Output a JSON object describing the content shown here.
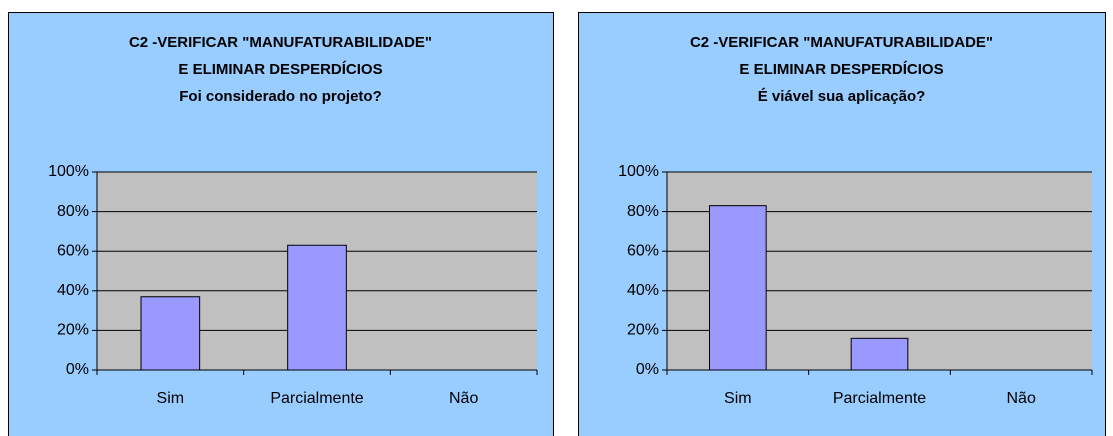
{
  "chart_data": [
    {
      "type": "bar",
      "title": [
        "C2 -VERIFICAR \"MANUFATURABILIDADE\"",
        "E ELIMINAR DESPERDÍCIOS",
        "Foi considerado no projeto?"
      ],
      "categories": [
        "Sim",
        "Parcialmente",
        "Não"
      ],
      "values": [
        37,
        63,
        0
      ],
      "color": "#9999ff",
      "ylim": [
        0,
        100
      ],
      "yticks": [
        {
          "value": 0,
          "label": "0%"
        },
        {
          "value": 20,
          "label": "20%"
        },
        {
          "value": 40,
          "label": "40%"
        },
        {
          "value": 60,
          "label": "60%"
        },
        {
          "value": 80,
          "label": "80%"
        },
        {
          "value": 100,
          "label": "100%"
        }
      ],
      "grid": true
    },
    {
      "type": "bar",
      "title": [
        "C2 -VERIFICAR \"MANUFATURABILIDADE\"",
        "E ELIMINAR DESPERDÍCIOS",
        "É viável sua aplicação?"
      ],
      "categories": [
        "Sim",
        "Parcialmente",
        "Não"
      ],
      "values": [
        83,
        16,
        0
      ],
      "color": "#9999ff",
      "ylim": [
        0,
        100
      ],
      "yticks": [
        {
          "value": 0,
          "label": "0%"
        },
        {
          "value": 20,
          "label": "20%"
        },
        {
          "value": 40,
          "label": "40%"
        },
        {
          "value": 60,
          "label": "60%"
        },
        {
          "value": 80,
          "label": "80%"
        },
        {
          "value": 100,
          "label": "100%"
        }
      ],
      "grid": true
    }
  ]
}
